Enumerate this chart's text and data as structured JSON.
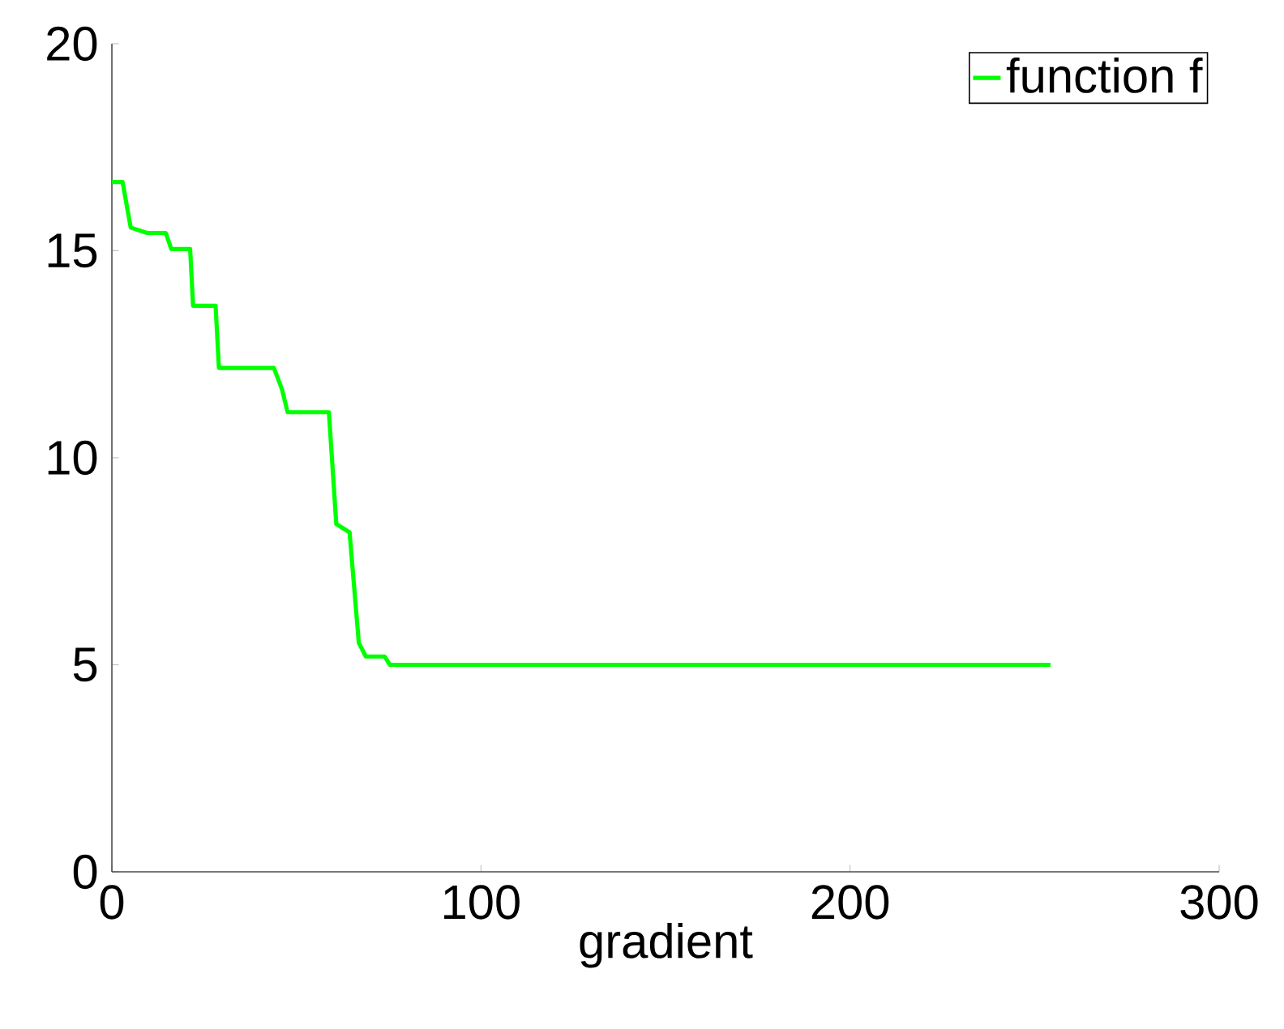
{
  "chart_data": {
    "type": "line",
    "xlabel": "gradient",
    "series": [
      {
        "name": "function f",
        "color": "#00ff00",
        "x": [
          0,
          2.9,
          5.1,
          9.5,
          14.6,
          16.1,
          21.2,
          22,
          28.1,
          29,
          43.9,
          46.1,
          47.6,
          58.8,
          60.8,
          64.4,
          66.9,
          68.8,
          73.9,
          75.3,
          254.3
        ],
        "values": [
          16.66,
          16.66,
          15.56,
          15.43,
          15.43,
          15.04,
          15.04,
          13.67,
          13.67,
          12.17,
          12.17,
          11.65,
          11.1,
          11.1,
          8.4,
          8.2,
          5.53,
          5.2,
          5.2,
          5.0,
          5.0
        ]
      }
    ],
    "xlim": [
      0,
      300
    ],
    "ylim": [
      0,
      20
    ],
    "xticks": [
      0,
      100,
      200,
      300
    ],
    "yticks": [
      0,
      5,
      10,
      15,
      20
    ],
    "legend": "top right",
    "grid": false,
    "marker": "none",
    "line_style": "solid"
  }
}
